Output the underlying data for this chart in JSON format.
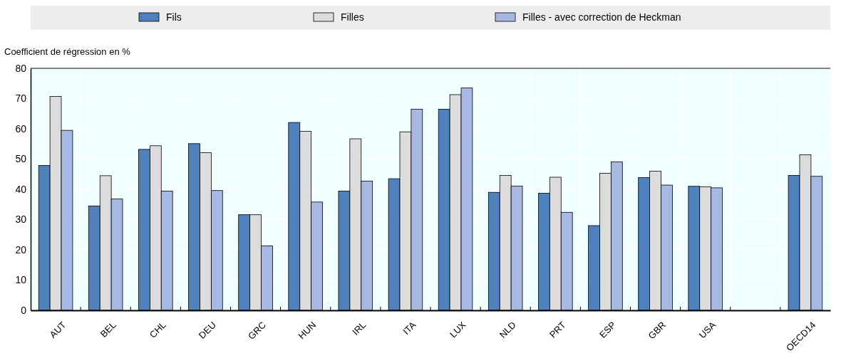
{
  "chart_data": {
    "type": "bar",
    "ylabel": "Coefficient de régression en %",
    "categories": [
      "AUT",
      "BEL",
      "CHL",
      "DEU",
      "GRC",
      "HUN",
      "IRL",
      "ITA",
      "LUX",
      "NLD",
      "PRT",
      "ESP",
      "GBR",
      "USA",
      null,
      "OECD14"
    ],
    "series": [
      {
        "name": "Fils",
        "color": "#4f81bd",
        "values": [
          47.9,
          34.5,
          53.2,
          55.1,
          31.6,
          62.1,
          39.4,
          43.5,
          66.5,
          39.0,
          38.7,
          28.0,
          43.9,
          41.0,
          null,
          44.6
        ]
      },
      {
        "name": "Filles",
        "color": "#dcdcdc",
        "values": [
          70.7,
          44.5,
          54.4,
          52.1,
          31.6,
          59.2,
          56.7,
          59.0,
          71.3,
          44.6,
          44.0,
          45.3,
          46.0,
          40.8,
          null,
          51.4
        ]
      },
      {
        "name": "Filles - avec correction de Heckman",
        "color": "#a7b8e3",
        "values": [
          59.5,
          36.8,
          39.4,
          39.6,
          21.3,
          35.8,
          42.7,
          66.5,
          73.5,
          41.1,
          32.4,
          49.1,
          41.4,
          40.5,
          null,
          44.3
        ]
      }
    ],
    "ylim": [
      0,
      80
    ],
    "yticks": [
      0,
      10,
      20,
      30,
      40,
      50,
      60,
      70,
      80
    ],
    "grid": true,
    "legend": "top"
  }
}
